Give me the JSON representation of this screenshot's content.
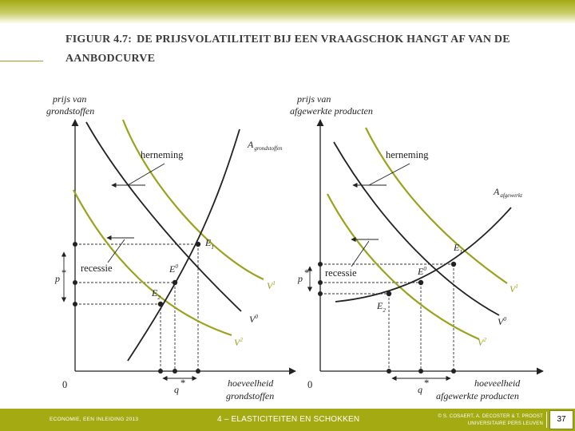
{
  "slide": {
    "title_prefix": "FIGUUR 4.7:",
    "title_text": "DE PRIJSVOLATILITEIT BIJ EEN VRAAGSCHOK HANGT AF VAN DE AANBODCURVE",
    "page_number": "37"
  },
  "footer": {
    "left": "ECONOMIE, EEN INLEIDING 2013",
    "center": "4 – ELASTICITEITEN EN SCHOKKEN",
    "right_line1": "© S. COSAERT, A. DECOSTER & T. PROOST",
    "right_line2": "UNIVERSITAIRE PERS LEUVEN"
  },
  "colors": {
    "accent": "#a3aa12",
    "demand_shift": "#9aa21e",
    "curve": "#222222"
  },
  "left_panel": {
    "y_axis_line1": "prijs van",
    "y_axis_line2": "grondstoffen",
    "x_axis_line1": "hoeveelheid",
    "x_axis_line2": "grondstoffen",
    "origin": "0",
    "p_label": "p",
    "q_label": "q",
    "supply_main": "A",
    "supply_sub": "grondstoffen",
    "herneming": "herneming",
    "recessie": "recessie",
    "E0": "E",
    "E0_sup": "0",
    "E1": "E",
    "E1_sub": "1",
    "E2": "E",
    "E2_sub": "2",
    "V1": "V",
    "V1_sup": "1",
    "V0": "V",
    "V0_sup": "0",
    "V2": "V",
    "V2_sup": "2"
  },
  "right_panel": {
    "y_axis_line1": "prijs van",
    "y_axis_line2": "afgewerkte producten",
    "x_axis_line1": "hoeveelheid",
    "x_axis_line2": "afgewerkte producten",
    "origin": "0",
    "p_label": "p",
    "q_label": "q",
    "supply_main": "A",
    "supply_sub": "afgewerkt",
    "herneming": "herneming",
    "recessie": "recessie",
    "E0": "E",
    "E0_sup": "0",
    "E1": "E",
    "E1_sub": "1",
    "E2": "E",
    "E2_sub": "2",
    "V1": "V",
    "V1_sup": "1",
    "V0": "V",
    "V0_sup": "0",
    "V2": "V",
    "V2_sup": "2"
  }
}
